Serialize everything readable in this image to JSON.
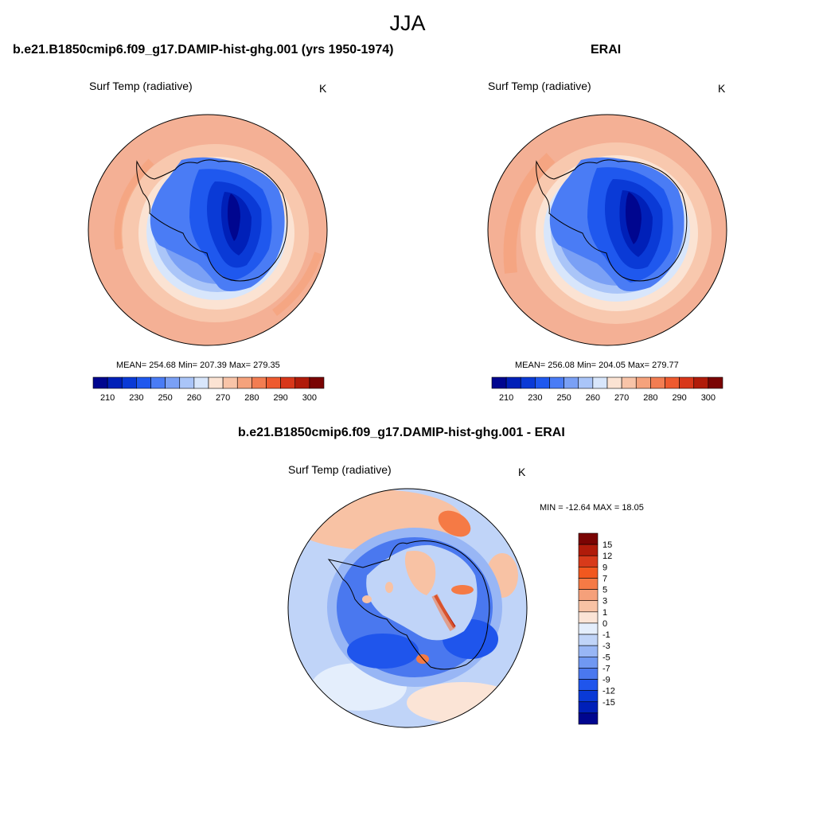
{
  "figure": {
    "season": "JJA"
  },
  "panels": [
    {
      "title": "b.e21.B1850cmip6.f09_g17.DAMIP-hist-ghg.001 (yrs 1950-1974)",
      "variable": "Surf Temp (radiative)",
      "units": "K",
      "stats": "MEAN= 254.68  Min= 207.39  Max= 279.35"
    },
    {
      "title": "ERAI",
      "variable": "Surf Temp (radiative)",
      "units": "K",
      "stats": "MEAN= 256.08  Min= 204.05  Max= 279.77"
    },
    {
      "title": "b.e21.B1850cmip6.f09_g17.DAMIP-hist-ghg.001 - ERAI",
      "variable": "Surf Temp (radiative)",
      "units": "K",
      "stats": "MIN = -12.64 MAX =  18.05"
    }
  ],
  "colorbars": {
    "absolute": {
      "colors": [
        "#00068f",
        "#0020b8",
        "#0a3ad6",
        "#1f58ee",
        "#4a7cf5",
        "#7aa0f5",
        "#aac5f8",
        "#d8e6fb",
        "#fbe3d3",
        "#f8c4a8",
        "#f5a27c",
        "#f27d52",
        "#ee5a2f",
        "#d8371a",
        "#b01b0a",
        "#7a0403"
      ],
      "labels": [
        "210",
        "230",
        "250",
        "260",
        "270",
        "280",
        "290",
        "300"
      ]
    },
    "difference": {
      "colors": [
        "#7a0403",
        "#b01b0a",
        "#d83a1a",
        "#f2581f",
        "#f57a45",
        "#f5a07a",
        "#f8c2a4",
        "#fbe4d6",
        "#e4eefc",
        "#c0d4f8",
        "#98b6f5",
        "#7098f2",
        "#4a78ef",
        "#1f55ec",
        "#0a3ad6",
        "#0020b8",
        "#00068f"
      ],
      "labels": [
        "15",
        "12",
        "9",
        "7",
        "5",
        "3",
        "1",
        "0",
        "-1",
        "-3",
        "-5",
        "-7",
        "-9",
        "-12",
        "-15"
      ]
    }
  },
  "palette": {
    "ocean_warm": "#f4b095",
    "ocean_mid": "#f8c8ae",
    "ocean_cool": "#fbe3d3",
    "ice_edge": "#d8e6fb",
    "ice_light": "#aac5f8",
    "ice_mid": "#7aa0f5",
    "land_a": "#4a7cf5",
    "land_b": "#1f58ee",
    "land_c": "#0a3ad6",
    "land_d": "#0020b8",
    "land_e": "#00068f",
    "diff_base": "#c0d4f8",
    "diff_blue": "#7098f2",
    "diff_dark": "#1f55ec",
    "diff_warm": "#f8c2a4",
    "diff_hot": "#f57a45",
    "diff_max": "#b01b0a"
  }
}
